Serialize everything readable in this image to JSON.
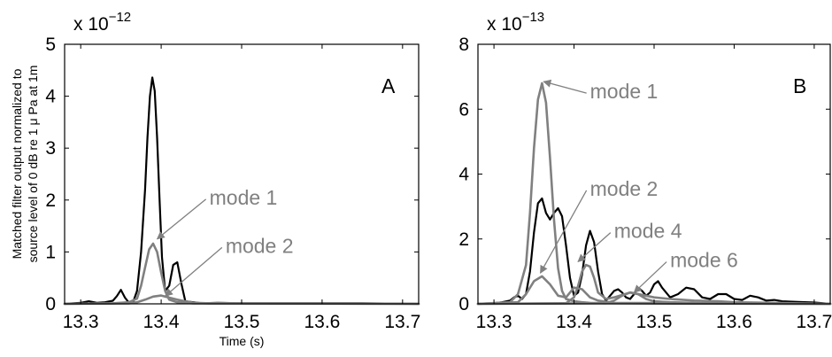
{
  "ylabel_lines": [
    "Matched filter output normalized to",
    "source level of 0 dB re 1 μ Pa at 1m"
  ],
  "colors": {
    "total": "#000000",
    "mode": "#808080",
    "axis": "#000000"
  },
  "chart_data": [
    {
      "type": "line",
      "panel_label": "A",
      "xlabel": "Time (s)",
      "multiplier_base": "x 10",
      "multiplier_exp": "−12",
      "xlim": [
        13.28,
        13.72
      ],
      "ylim": [
        0,
        5
      ],
      "xticks": [
        13.3,
        13.4,
        13.5,
        13.6,
        13.7
      ],
      "xtick_labels": [
        "13.3",
        "13.4",
        "13.5",
        "13.6",
        "13.7"
      ],
      "yticks": [
        0,
        1,
        2,
        3,
        4,
        5
      ],
      "ytick_labels": [
        "0",
        "1",
        "2",
        "3",
        "4",
        "5"
      ],
      "series": [
        {
          "style": "total",
          "x": [
            13.28,
            13.3,
            13.31,
            13.32,
            13.33,
            13.34,
            13.345,
            13.35,
            13.355,
            13.36,
            13.365,
            13.37,
            13.375,
            13.38,
            13.383,
            13.386,
            13.389,
            13.392,
            13.395,
            13.398,
            13.401,
            13.405,
            13.41,
            13.415,
            13.42,
            13.425,
            13.43,
            13.44,
            13.45,
            13.47,
            13.5,
            13.55,
            13.6,
            13.65,
            13.72
          ],
          "y": [
            0,
            0.02,
            0.05,
            0.02,
            0.03,
            0.06,
            0.15,
            0.27,
            0.12,
            0.02,
            0.03,
            0.25,
            1.0,
            2.2,
            3.2,
            4.0,
            4.36,
            4.1,
            3.2,
            2.0,
            0.9,
            0.25,
            0.35,
            0.75,
            0.8,
            0.4,
            0.05,
            0.03,
            0.01,
            0.02,
            0.01,
            0.01,
            0.01,
            0.01,
            0
          ]
        },
        {
          "style": "mode",
          "x": [
            13.28,
            13.34,
            13.36,
            13.37,
            13.375,
            13.38,
            13.385,
            13.39,
            13.395,
            13.4,
            13.405,
            13.41,
            13.42,
            13.44,
            13.5,
            13.72
          ],
          "y": [
            0,
            0.01,
            0.03,
            0.1,
            0.35,
            0.7,
            1.05,
            1.16,
            1.0,
            0.6,
            0.25,
            0.08,
            0.03,
            0.01,
            0.01,
            0
          ]
        },
        {
          "style": "mode",
          "x": [
            13.28,
            13.36,
            13.37,
            13.38,
            13.39,
            13.4,
            13.41,
            13.42,
            13.43,
            13.44,
            13.46,
            13.72
          ],
          "y": [
            0,
            0.01,
            0.03,
            0.08,
            0.14,
            0.16,
            0.12,
            0.08,
            0.05,
            0.02,
            0.01,
            0
          ]
        }
      ],
      "annotations": [
        {
          "text": "mode 1",
          "tx": 13.46,
          "ty": 2.05,
          "ax": 13.395,
          "ay": 1.25
        },
        {
          "text": "mode 2",
          "tx": 13.48,
          "ty": 1.12,
          "ax": 13.405,
          "ay": 0.15
        }
      ]
    },
    {
      "type": "line",
      "panel_label": "B",
      "xlabel": "",
      "multiplier_base": "x 10",
      "multiplier_exp": "−13",
      "xlim": [
        13.28,
        13.72
      ],
      "ylim": [
        0,
        8
      ],
      "xticks": [
        13.3,
        13.4,
        13.5,
        13.6,
        13.7
      ],
      "xtick_labels": [
        "13.3",
        "13.4",
        "13.5",
        "13.6",
        "13.7"
      ],
      "yticks": [
        0,
        2,
        4,
        6,
        8
      ],
      "ytick_labels": [
        "0",
        "2",
        "4",
        "6",
        "8"
      ],
      "series": [
        {
          "style": "total",
          "x": [
            13.28,
            13.3,
            13.31,
            13.32,
            13.325,
            13.33,
            13.335,
            13.34,
            13.345,
            13.35,
            13.355,
            13.36,
            13.365,
            13.37,
            13.375,
            13.38,
            13.385,
            13.39,
            13.395,
            13.4,
            13.405,
            13.41,
            13.415,
            13.42,
            13.425,
            13.43,
            13.435,
            13.44,
            13.445,
            13.45,
            13.455,
            13.46,
            13.465,
            13.47,
            13.475,
            13.48,
            13.485,
            13.49,
            13.495,
            13.5,
            13.505,
            13.51,
            13.52,
            13.53,
            13.54,
            13.55,
            13.56,
            13.57,
            13.58,
            13.59,
            13.6,
            13.61,
            13.62,
            13.63,
            13.64,
            13.65,
            13.66,
            13.68,
            13.7,
            13.72
          ],
          "y": [
            0,
            0.02,
            0.05,
            0.1,
            0.2,
            0.25,
            0.15,
            0.3,
            1.0,
            2.2,
            3.1,
            3.25,
            2.8,
            2.6,
            2.8,
            2.95,
            2.7,
            1.8,
            0.8,
            0.25,
            0.35,
            0.9,
            1.8,
            2.25,
            1.9,
            1.0,
            0.3,
            0.1,
            0.25,
            0.4,
            0.45,
            0.35,
            0.2,
            0.15,
            0.3,
            0.5,
            0.4,
            0.25,
            0.35,
            0.6,
            0.7,
            0.5,
            0.2,
            0.3,
            0.5,
            0.45,
            0.2,
            0.15,
            0.3,
            0.3,
            0.15,
            0.12,
            0.25,
            0.2,
            0.1,
            0.12,
            0.08,
            0.06,
            0.04,
            0
          ]
        },
        {
          "style": "mode",
          "x": [
            13.28,
            13.32,
            13.33,
            13.34,
            13.345,
            13.35,
            13.355,
            13.36,
            13.365,
            13.37,
            13.375,
            13.38,
            13.385,
            13.39,
            13.4,
            13.41,
            13.42,
            13.44,
            13.5,
            13.72
          ],
          "y": [
            0,
            0.05,
            0.3,
            1.2,
            2.8,
            4.8,
            6.3,
            6.8,
            6.2,
            4.5,
            2.6,
            1.1,
            0.4,
            0.15,
            0.08,
            0.05,
            0.03,
            0.02,
            0.01,
            0
          ]
        },
        {
          "style": "mode",
          "x": [
            13.28,
            13.33,
            13.34,
            13.35,
            13.36,
            13.37,
            13.38,
            13.39,
            13.4,
            13.41,
            13.42,
            13.43,
            13.45,
            13.72
          ],
          "y": [
            0,
            0.05,
            0.3,
            0.7,
            0.85,
            0.6,
            0.25,
            0.2,
            0.5,
            0.45,
            0.2,
            0.1,
            0.03,
            0
          ]
        },
        {
          "style": "mode",
          "x": [
            13.28,
            13.39,
            13.4,
            13.405,
            13.41,
            13.415,
            13.42,
            13.425,
            13.43,
            13.44,
            13.45,
            13.47,
            13.49,
            13.5,
            13.52,
            13.55,
            13.58,
            13.6,
            13.65,
            13.72
          ],
          "y": [
            0,
            0.02,
            0.2,
            0.55,
            1.0,
            1.2,
            1.15,
            0.8,
            0.35,
            0.15,
            0.2,
            0.35,
            0.25,
            0.2,
            0.15,
            0.1,
            0.08,
            0.05,
            0.03,
            0
          ]
        },
        {
          "style": "mode",
          "x": [
            13.28,
            13.44,
            13.45,
            13.46,
            13.47,
            13.48,
            13.49,
            13.5,
            13.52,
            13.55,
            13.6,
            13.72
          ],
          "y": [
            0,
            0.02,
            0.1,
            0.25,
            0.35,
            0.3,
            0.15,
            0.08,
            0.05,
            0.03,
            0.01,
            0
          ]
        }
      ],
      "annotations": [
        {
          "text": "mode 1",
          "tx": 13.42,
          "ty": 6.55,
          "ax": 13.362,
          "ay": 6.85
        },
        {
          "text": "mode 2",
          "tx": 13.42,
          "ty": 3.55,
          "ax": 13.358,
          "ay": 0.95
        },
        {
          "text": "mode 4",
          "tx": 13.45,
          "ty": 2.25,
          "ax": 13.405,
          "ay": 1.3
        },
        {
          "text": "mode 6",
          "tx": 13.52,
          "ty": 1.35,
          "ax": 13.475,
          "ay": 0.35
        }
      ]
    }
  ]
}
